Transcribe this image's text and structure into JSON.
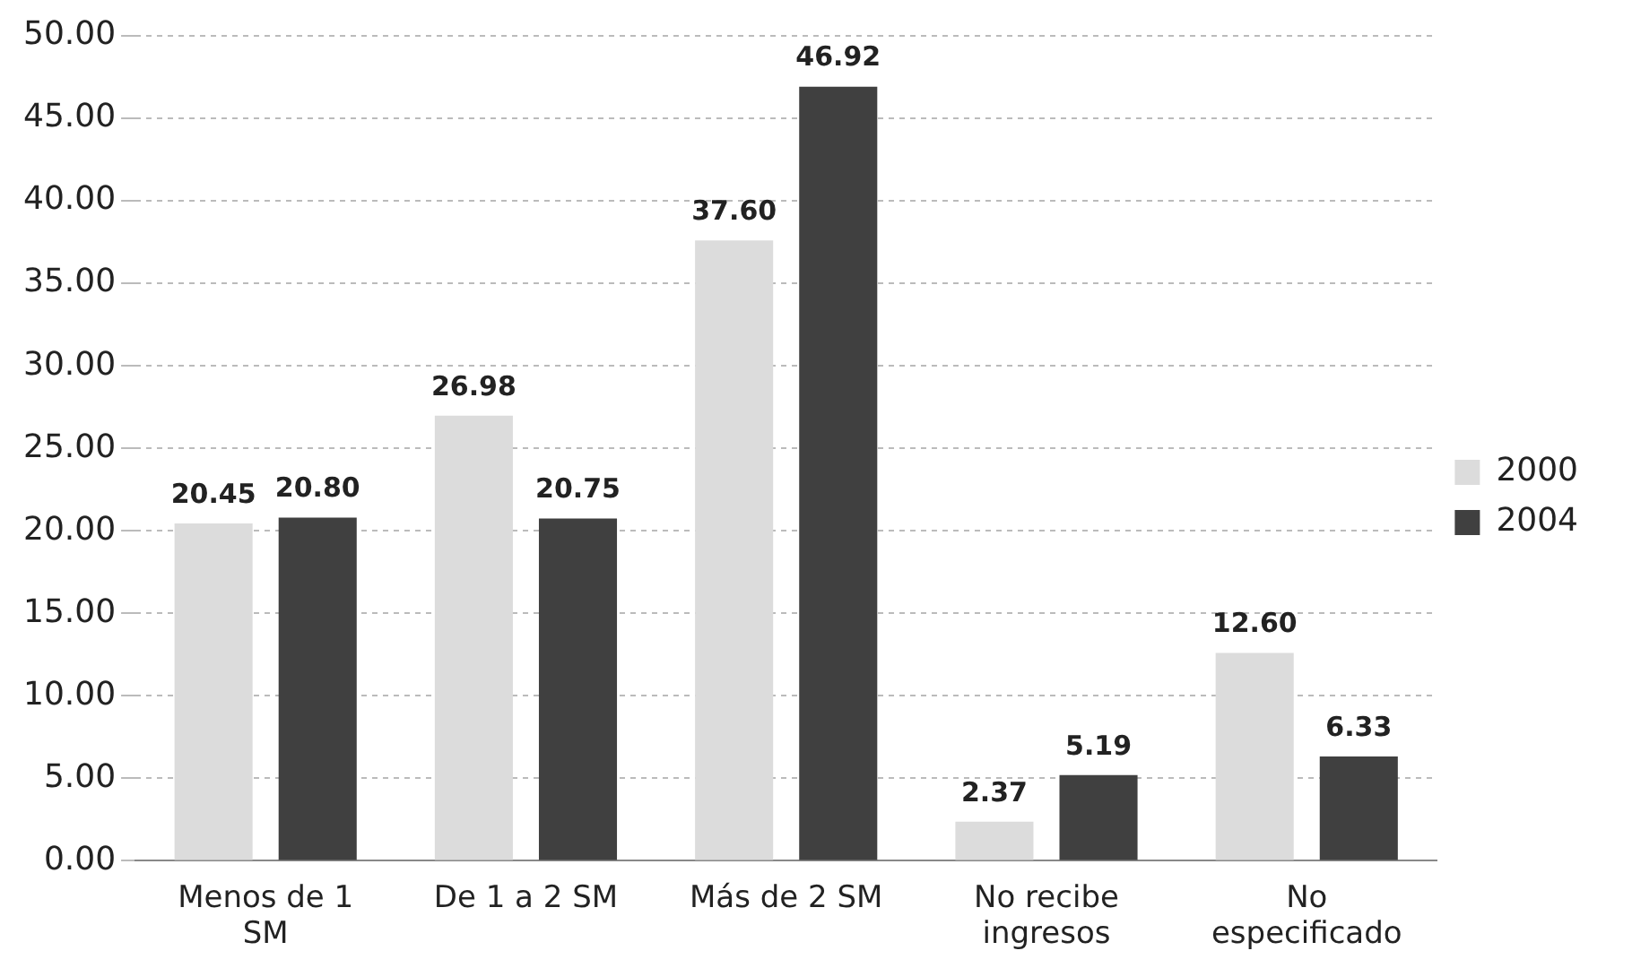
{
  "chart_data": {
    "type": "bar",
    "categories": [
      "Menos de 1 SM",
      "De 1 a 2 SM",
      "Más de 2 SM",
      "No recibe ingresos",
      "No especificado"
    ],
    "series": [
      {
        "name": "2000",
        "color": "#dcdcdc",
        "values": [
          20.45,
          26.98,
          37.6,
          2.37,
          12.6
        ],
        "value_labels": [
          "20.45",
          "26.98",
          "37.60",
          "2.37",
          "12.60"
        ]
      },
      {
        "name": "2004",
        "color": "#404040",
        "values": [
          20.8,
          20.75,
          46.92,
          5.19,
          6.33
        ],
        "value_labels": [
          "20.80",
          "20.75",
          "46.92",
          "5.19",
          "6.33"
        ]
      }
    ],
    "ylim": [
      0,
      50
    ],
    "yticks": [
      {
        "value": 0,
        "label": "0.00"
      },
      {
        "value": 5,
        "label": "5.00"
      },
      {
        "value": 10,
        "label": "10.00"
      },
      {
        "value": 15,
        "label": "15.00"
      },
      {
        "value": 20,
        "label": "20.00"
      },
      {
        "value": 25,
        "label": "25.00"
      },
      {
        "value": 30,
        "label": "30.00"
      },
      {
        "value": 35,
        "label": "35.00"
      },
      {
        "value": 40,
        "label": "40.00"
      },
      {
        "value": 45,
        "label": "45.00"
      },
      {
        "value": 50,
        "label": "50.00"
      }
    ],
    "grid": "y",
    "legend": "right"
  }
}
